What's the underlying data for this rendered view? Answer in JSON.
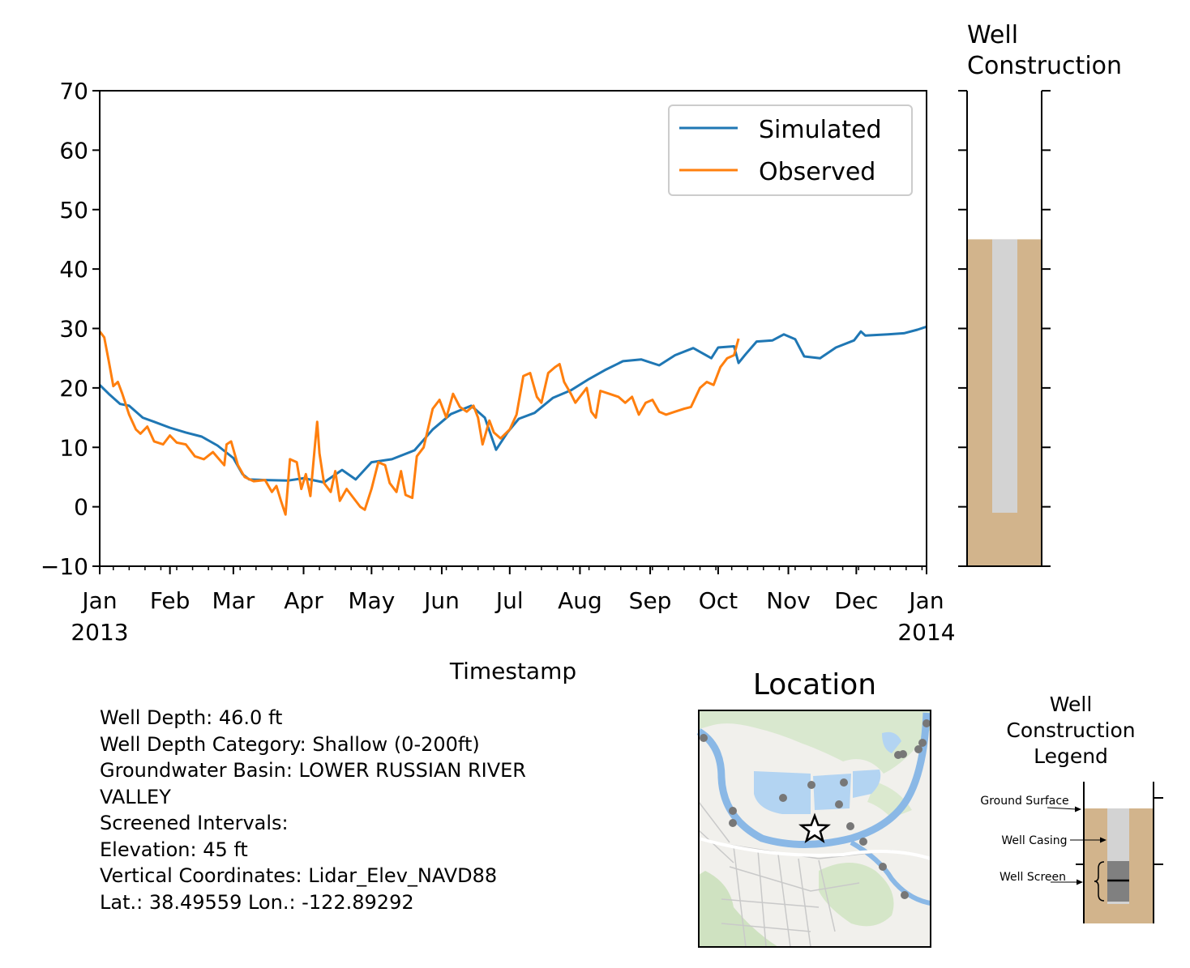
{
  "main_chart": {
    "xlabel": "Timestamp",
    "ylim": [
      -10,
      70
    ],
    "y_ticks": [
      "−10",
      "0",
      "10",
      "20",
      "30",
      "40",
      "50",
      "60",
      "70"
    ],
    "x_ticks": [
      {
        "label": "Jan",
        "label2": "2013"
      },
      {
        "label": "Feb",
        "label2": ""
      },
      {
        "label": "Mar",
        "label2": ""
      },
      {
        "label": "Apr",
        "label2": ""
      },
      {
        "label": "May",
        "label2": ""
      },
      {
        "label": "Jun",
        "label2": ""
      },
      {
        "label": "Jul",
        "label2": ""
      },
      {
        "label": "Aug",
        "label2": ""
      },
      {
        "label": "Sep",
        "label2": ""
      },
      {
        "label": "Oct",
        "label2": ""
      },
      {
        "label": "Nov",
        "label2": ""
      },
      {
        "label": "Dec",
        "label2": ""
      },
      {
        "label": "Jan",
        "label2": "2014"
      }
    ],
    "legend_position": "upper-right",
    "colors": {
      "simulated": "#1f77b4",
      "observed": "#ff7f0e"
    }
  },
  "chart_data": [
    {
      "type": "line",
      "xlabel": "Timestamp",
      "ylabel": "",
      "xlim": [
        "2013-01-01",
        "2014-01-01"
      ],
      "ylim": [
        -10,
        70
      ],
      "grid": false,
      "legend": "upper-right",
      "series": [
        {
          "name": "Simulated",
          "color": "#1f77b4",
          "points": [
            [
              "2013-01-01",
              20.5
            ],
            [
              "2013-01-05",
              19.0
            ],
            [
              "2013-01-10",
              17.3
            ],
            [
              "2013-01-14",
              17.0
            ],
            [
              "2013-01-20",
              15.0
            ],
            [
              "2013-01-25",
              14.3
            ],
            [
              "2013-02-01",
              13.3
            ],
            [
              "2013-02-08",
              12.5
            ],
            [
              "2013-02-15",
              11.8
            ],
            [
              "2013-02-22",
              10.3
            ],
            [
              "2013-03-01",
              8.2
            ],
            [
              "2013-03-05",
              5.5
            ],
            [
              "2013-03-08",
              4.6
            ],
            [
              "2013-03-15",
              4.5
            ],
            [
              "2013-03-25",
              4.4
            ],
            [
              "2013-04-01",
              4.8
            ],
            [
              "2013-04-10",
              4.1
            ],
            [
              "2013-04-18",
              6.2
            ],
            [
              "2013-04-24",
              4.6
            ],
            [
              "2013-05-01",
              7.5
            ],
            [
              "2013-05-10",
              8.0
            ],
            [
              "2013-05-20",
              9.5
            ],
            [
              "2013-05-28",
              13.0
            ],
            [
              "2013-06-05",
              15.6
            ],
            [
              "2013-06-14",
              17.0
            ],
            [
              "2013-06-20",
              15.0
            ],
            [
              "2013-06-25",
              9.6
            ],
            [
              "2013-06-30",
              12.5
            ],
            [
              "2013-07-05",
              14.8
            ],
            [
              "2013-07-12",
              15.8
            ],
            [
              "2013-07-20",
              18.3
            ],
            [
              "2013-07-28",
              19.6
            ],
            [
              "2013-08-05",
              21.5
            ],
            [
              "2013-08-12",
              23.0
            ],
            [
              "2013-08-20",
              24.5
            ],
            [
              "2013-08-28",
              24.8
            ],
            [
              "2013-09-05",
              23.8
            ],
            [
              "2013-09-12",
              25.5
            ],
            [
              "2013-09-20",
              26.7
            ],
            [
              "2013-09-28",
              25.0
            ],
            [
              "2013-10-01",
              26.8
            ],
            [
              "2013-10-08",
              27.0
            ],
            [
              "2013-10-10",
              24.2
            ],
            [
              "2013-10-13",
              25.6
            ],
            [
              "2013-10-18",
              27.8
            ],
            [
              "2013-10-25",
              28.0
            ],
            [
              "2013-10-30",
              29.0
            ],
            [
              "2013-11-04",
              28.2
            ],
            [
              "2013-11-08",
              25.3
            ],
            [
              "2013-11-15",
              25.0
            ],
            [
              "2013-11-22",
              26.8
            ],
            [
              "2013-11-30",
              28.0
            ],
            [
              "2013-12-03",
              29.5
            ],
            [
              "2013-12-05",
              28.8
            ],
            [
              "2013-12-15",
              29.0
            ],
            [
              "2013-12-22",
              29.2
            ],
            [
              "2013-12-28",
              29.8
            ],
            [
              "2014-01-01",
              30.3
            ]
          ]
        },
        {
          "name": "Observed",
          "color": "#ff7f0e",
          "points": [
            [
              "2013-01-01",
              29.5
            ],
            [
              "2013-01-03",
              28.5
            ],
            [
              "2013-01-05",
              24.5
            ],
            [
              "2013-01-07",
              20.3
            ],
            [
              "2013-01-09",
              21.0
            ],
            [
              "2013-01-11",
              19.0
            ],
            [
              "2013-01-14",
              15.5
            ],
            [
              "2013-01-17",
              13.0
            ],
            [
              "2013-01-19",
              12.3
            ],
            [
              "2013-01-22",
              13.5
            ],
            [
              "2013-01-25",
              11.0
            ],
            [
              "2013-01-29",
              10.5
            ],
            [
              "2013-02-01",
              12.0
            ],
            [
              "2013-02-04",
              10.8
            ],
            [
              "2013-02-08",
              10.5
            ],
            [
              "2013-02-12",
              8.5
            ],
            [
              "2013-02-16",
              8.0
            ],
            [
              "2013-02-20",
              9.2
            ],
            [
              "2013-02-25",
              7.0
            ],
            [
              "2013-02-26",
              10.5
            ],
            [
              "2013-02-28",
              11.0
            ],
            [
              "2013-03-03",
              7.0
            ],
            [
              "2013-03-06",
              5.0
            ],
            [
              "2013-03-10",
              4.3
            ],
            [
              "2013-03-15",
              4.5
            ],
            [
              "2013-03-18",
              2.5
            ],
            [
              "2013-03-20",
              3.5
            ],
            [
              "2013-03-22",
              1.0
            ],
            [
              "2013-03-24",
              -1.3
            ],
            [
              "2013-03-26",
              8.0
            ],
            [
              "2013-03-29",
              7.5
            ],
            [
              "2013-03-31",
              3.0
            ],
            [
              "2013-04-02",
              5.5
            ],
            [
              "2013-04-04",
              1.8
            ],
            [
              "2013-04-06",
              10.3
            ],
            [
              "2013-04-07",
              14.3
            ],
            [
              "2013-04-08",
              9.0
            ],
            [
              "2013-04-10",
              4.0
            ],
            [
              "2013-04-13",
              2.5
            ],
            [
              "2013-04-15",
              6.0
            ],
            [
              "2013-04-17",
              1.0
            ],
            [
              "2013-04-20",
              3.0
            ],
            [
              "2013-04-23",
              1.5
            ],
            [
              "2013-04-26",
              0.0
            ],
            [
              "2013-04-28",
              -0.5
            ],
            [
              "2013-05-01",
              3.0
            ],
            [
              "2013-05-04",
              7.5
            ],
            [
              "2013-05-07",
              7.0
            ],
            [
              "2013-05-09",
              4.0
            ],
            [
              "2013-05-12",
              2.5
            ],
            [
              "2013-05-14",
              6.0
            ],
            [
              "2013-05-16",
              2.0
            ],
            [
              "2013-05-19",
              1.5
            ],
            [
              "2013-05-21",
              8.5
            ],
            [
              "2013-05-24",
              10.0
            ],
            [
              "2013-05-28",
              16.5
            ],
            [
              "2013-05-31",
              18.0
            ],
            [
              "2013-06-03",
              15.0
            ],
            [
              "2013-06-06",
              19.0
            ],
            [
              "2013-06-09",
              16.8
            ],
            [
              "2013-06-12",
              16.0
            ],
            [
              "2013-06-15",
              17.0
            ],
            [
              "2013-06-17",
              15.0
            ],
            [
              "2013-06-19",
              10.5
            ],
            [
              "2013-06-22",
              14.5
            ],
            [
              "2013-06-24",
              12.5
            ],
            [
              "2013-06-27",
              11.5
            ],
            [
              "2013-07-01",
              13.0
            ],
            [
              "2013-07-04",
              15.5
            ],
            [
              "2013-07-07",
              22.0
            ],
            [
              "2013-07-10",
              22.5
            ],
            [
              "2013-07-13",
              18.5
            ],
            [
              "2013-07-15",
              17.5
            ],
            [
              "2013-07-18",
              22.5
            ],
            [
              "2013-07-21",
              23.5
            ],
            [
              "2013-07-23",
              24.0
            ],
            [
              "2013-07-25",
              21.0
            ],
            [
              "2013-07-28",
              19.0
            ],
            [
              "2013-07-30",
              17.5
            ],
            [
              "2013-08-02",
              19.0
            ],
            [
              "2013-08-04",
              20.0
            ],
            [
              "2013-08-06",
              16.0
            ],
            [
              "2013-08-08",
              15.0
            ],
            [
              "2013-08-10",
              19.5
            ],
            [
              "2013-08-14",
              19.0
            ],
            [
              "2013-08-18",
              18.5
            ],
            [
              "2013-08-21",
              17.5
            ],
            [
              "2013-08-24",
              18.5
            ],
            [
              "2013-08-27",
              15.5
            ],
            [
              "2013-08-30",
              17.5
            ],
            [
              "2013-09-02",
              18.0
            ],
            [
              "2013-09-05",
              16.0
            ],
            [
              "2013-09-08",
              15.5
            ],
            [
              "2013-09-12",
              16.0
            ],
            [
              "2013-09-16",
              16.5
            ],
            [
              "2013-09-19",
              16.8
            ],
            [
              "2013-09-23",
              20.0
            ],
            [
              "2013-09-26",
              21.0
            ],
            [
              "2013-09-29",
              20.5
            ],
            [
              "2013-10-02",
              23.5
            ],
            [
              "2013-10-05",
              25.0
            ],
            [
              "2013-10-08",
              25.5
            ],
            [
              "2013-10-10",
              28.3
            ]
          ]
        }
      ]
    },
    {
      "type": "bar",
      "title": "Well Construction",
      "ylim": [
        -10,
        70
      ],
      "ground_surface": 45,
      "casing_bottom": -1,
      "colors": {
        "soil": "#d2b48c",
        "casing": "#d3d3d3"
      }
    }
  ],
  "well_construction": {
    "title_line1": "Well",
    "title_line2": "Construction",
    "ground_surface": 45,
    "casing_bottom": -1,
    "colors": {
      "soil": "#d2b48c",
      "casing": "#d3d3d3"
    }
  },
  "info": {
    "well_depth": "Well Depth: 46.0 ft",
    "depth_category": "Well Depth Category: Shallow (0-200ft)",
    "basin_line1": "Groundwater Basin: LOWER RUSSIAN RIVER",
    "basin_line2": "VALLEY",
    "screened": "Screened Intervals:",
    "elevation": "Elevation: 45 ft",
    "vertical_coords": "Vertical Coordinates: Lidar_Elev_NAVD88",
    "latlon": "Lat.: 38.49559 Lon.: -122.89292"
  },
  "location": {
    "title": "Location",
    "marker_icon": "star-icon"
  },
  "legend_box": {
    "title_line1": "Well",
    "title_line2": "Construction",
    "title_line3": "Legend",
    "ground_surface": "Ground Surface",
    "well_casing": "Well Casing",
    "well_screen": "Well Screen"
  }
}
